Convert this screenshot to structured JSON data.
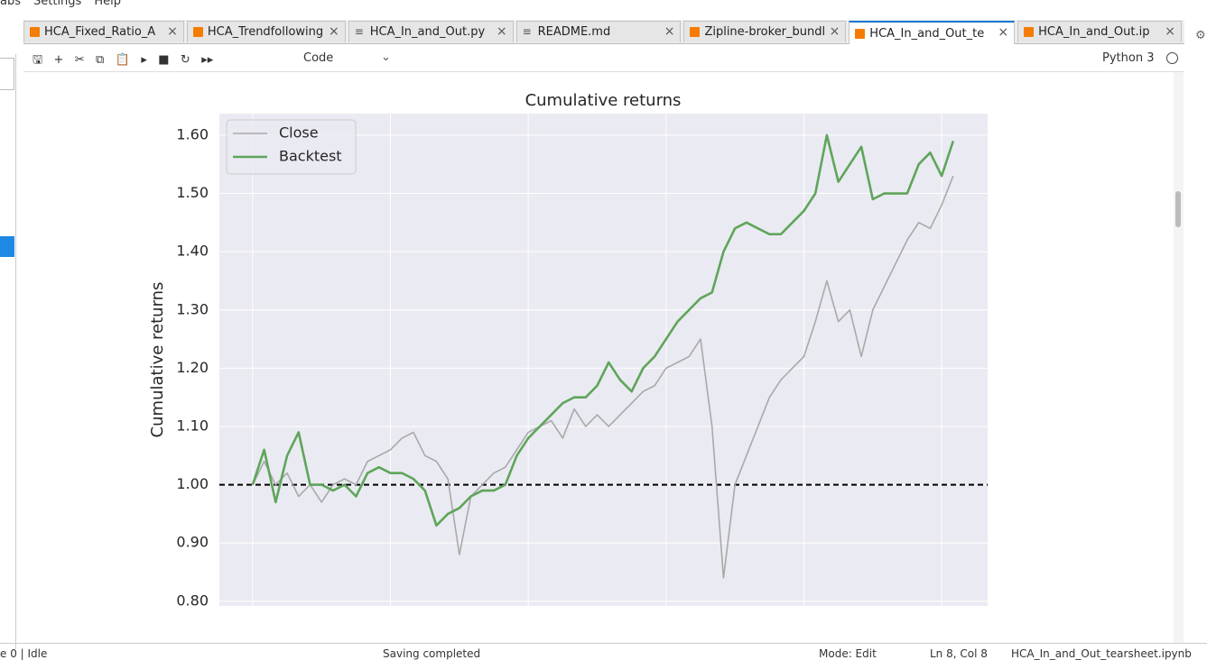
{
  "menu": [
    "abs",
    "Settings",
    "Help"
  ],
  "tabs": [
    {
      "label": "HCA_Fixed_Ratio_A",
      "kind": "notebook"
    },
    {
      "label": "HCA_Trendfollowing",
      "kind": "notebook"
    },
    {
      "label": "HCA_In_and_Out.py",
      "kind": "text"
    },
    {
      "label": "README.md",
      "kind": "text"
    },
    {
      "label": "Zipline-broker_bundl",
      "kind": "notebook"
    },
    {
      "label": "HCA_In_and_Out_te",
      "kind": "notebook",
      "active": true
    },
    {
      "label": "HCA_In_and_Out.ip",
      "kind": "notebook"
    }
  ],
  "toolbar": {
    "cell_type": "Code",
    "kernel": "Python 3"
  },
  "status": {
    "left": "e 0 | Idle",
    "center": "Saving completed",
    "mode": "Mode: Edit",
    "position": "Ln 8, Col 8",
    "file": "HCA_In_and_Out_tearsheet.ipynb"
  },
  "chart_data": {
    "type": "line",
    "title": "Cumulative returns",
    "y_label": "Cumulative returns",
    "x": [
      0,
      1,
      2,
      3,
      4,
      5,
      6,
      7,
      8,
      9,
      10,
      11,
      12,
      13,
      14,
      15,
      16,
      17,
      18,
      19,
      20,
      21,
      22,
      23,
      24,
      25,
      26,
      27,
      28,
      29,
      30,
      31,
      32,
      33,
      34,
      35,
      36,
      37,
      38,
      39,
      40,
      41,
      42,
      43,
      44,
      45,
      46,
      47,
      48,
      49,
      50,
      51,
      52,
      53,
      54,
      55,
      56,
      57,
      58,
      59,
      60,
      61
    ],
    "series": [
      {
        "name": "Close",
        "color": "#a9a9a9",
        "values": [
          1.0,
          1.04,
          1.0,
          1.02,
          0.98,
          1.0,
          0.97,
          1.0,
          1.01,
          1.0,
          1.04,
          1.05,
          1.06,
          1.08,
          1.09,
          1.05,
          1.04,
          1.01,
          0.88,
          0.98,
          1.0,
          1.02,
          1.03,
          1.06,
          1.09,
          1.1,
          1.11,
          1.08,
          1.13,
          1.1,
          1.12,
          1.1,
          1.12,
          1.14,
          1.16,
          1.17,
          1.2,
          1.21,
          1.22,
          1.25,
          1.1,
          0.84,
          1.0,
          1.05,
          1.1,
          1.15,
          1.18,
          1.2,
          1.22,
          1.28,
          1.35,
          1.28,
          1.3,
          1.22,
          1.3,
          1.34,
          1.38,
          1.42,
          1.45,
          1.44,
          1.48,
          1.53
        ]
      },
      {
        "name": "Backtest",
        "color": "#5fa55a",
        "values": [
          1.0,
          1.06,
          0.97,
          1.05,
          1.09,
          1.0,
          1.0,
          0.99,
          1.0,
          0.98,
          1.02,
          1.03,
          1.02,
          1.02,
          1.01,
          0.99,
          0.93,
          0.95,
          0.96,
          0.98,
          0.99,
          0.99,
          1.0,
          1.05,
          1.08,
          1.1,
          1.12,
          1.14,
          1.15,
          1.15,
          1.17,
          1.21,
          1.18,
          1.16,
          1.2,
          1.22,
          1.25,
          1.28,
          1.3,
          1.32,
          1.33,
          1.4,
          1.44,
          1.45,
          1.44,
          1.43,
          1.43,
          1.45,
          1.47,
          1.5,
          1.6,
          1.52,
          1.55,
          1.58,
          1.49,
          1.5,
          1.5,
          1.5,
          1.55,
          1.57,
          1.53,
          1.59
        ]
      }
    ],
    "hline": 1.0,
    "xlim": [
      -2.9,
      64
    ],
    "xticks": [
      0,
      12,
      24,
      36,
      48,
      60
    ],
    "ylim": [
      0.792,
      1.637
    ],
    "yticks": [
      {
        "value": 0.8,
        "label": "0.80"
      },
      {
        "value": 0.9,
        "label": "0.90"
      },
      {
        "value": 1.0,
        "label": "1.00"
      },
      {
        "value": 1.1,
        "label": "1.10"
      },
      {
        "value": 1.2,
        "label": "1.20"
      },
      {
        "value": 1.3,
        "label": "1.30"
      },
      {
        "value": 1.4,
        "label": "1.40"
      },
      {
        "value": 1.5,
        "label": "1.50"
      },
      {
        "value": 1.6,
        "label": "1.60"
      }
    ],
    "grid": true,
    "legend": "upper-left"
  }
}
